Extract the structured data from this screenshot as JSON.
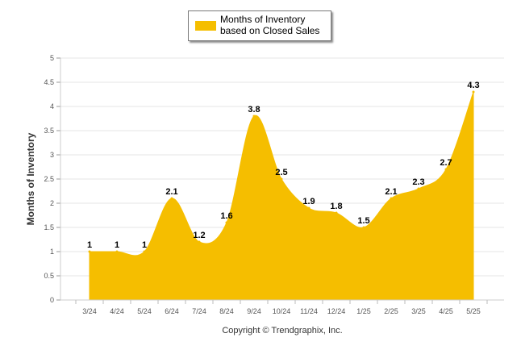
{
  "chart_data": {
    "type": "area",
    "categories": [
      "3/24",
      "4/24",
      "5/24",
      "6/24",
      "7/24",
      "8/24",
      "9/24",
      "10/24",
      "11/24",
      "12/24",
      "1/25",
      "2/25",
      "3/25",
      "4/25",
      "5/25"
    ],
    "series": [
      {
        "name": "Months of Inventory based on Closed Sales",
        "values": [
          1,
          1,
          1,
          2.1,
          1.2,
          1.6,
          3.8,
          2.5,
          1.9,
          1.8,
          1.5,
          2.1,
          2.3,
          2.7,
          4.3
        ]
      }
    ],
    "data_labels": [
      "1",
      "1",
      "1",
      "2.1",
      "1.2",
      "1.6",
      "3.8",
      "2.5",
      "1.9",
      "1.8",
      "1.5",
      "2.1",
      "2.3",
      "2.7",
      "4.3"
    ],
    "ylabel": "Months of Inventory",
    "ylim": [
      0,
      5
    ],
    "yticks": [
      "0",
      "0.5",
      "1",
      "1.5",
      "2",
      "2.5",
      "3",
      "3.5",
      "4",
      "4.5",
      "5"
    ],
    "grid": true,
    "legend_position": "top-center",
    "colors": {
      "fill": "#F5BE00",
      "grid": "#e6e6e6",
      "axis": "#cccccc"
    }
  },
  "footer": {
    "copyright": "Copyright © Trendgraphix, Inc."
  }
}
